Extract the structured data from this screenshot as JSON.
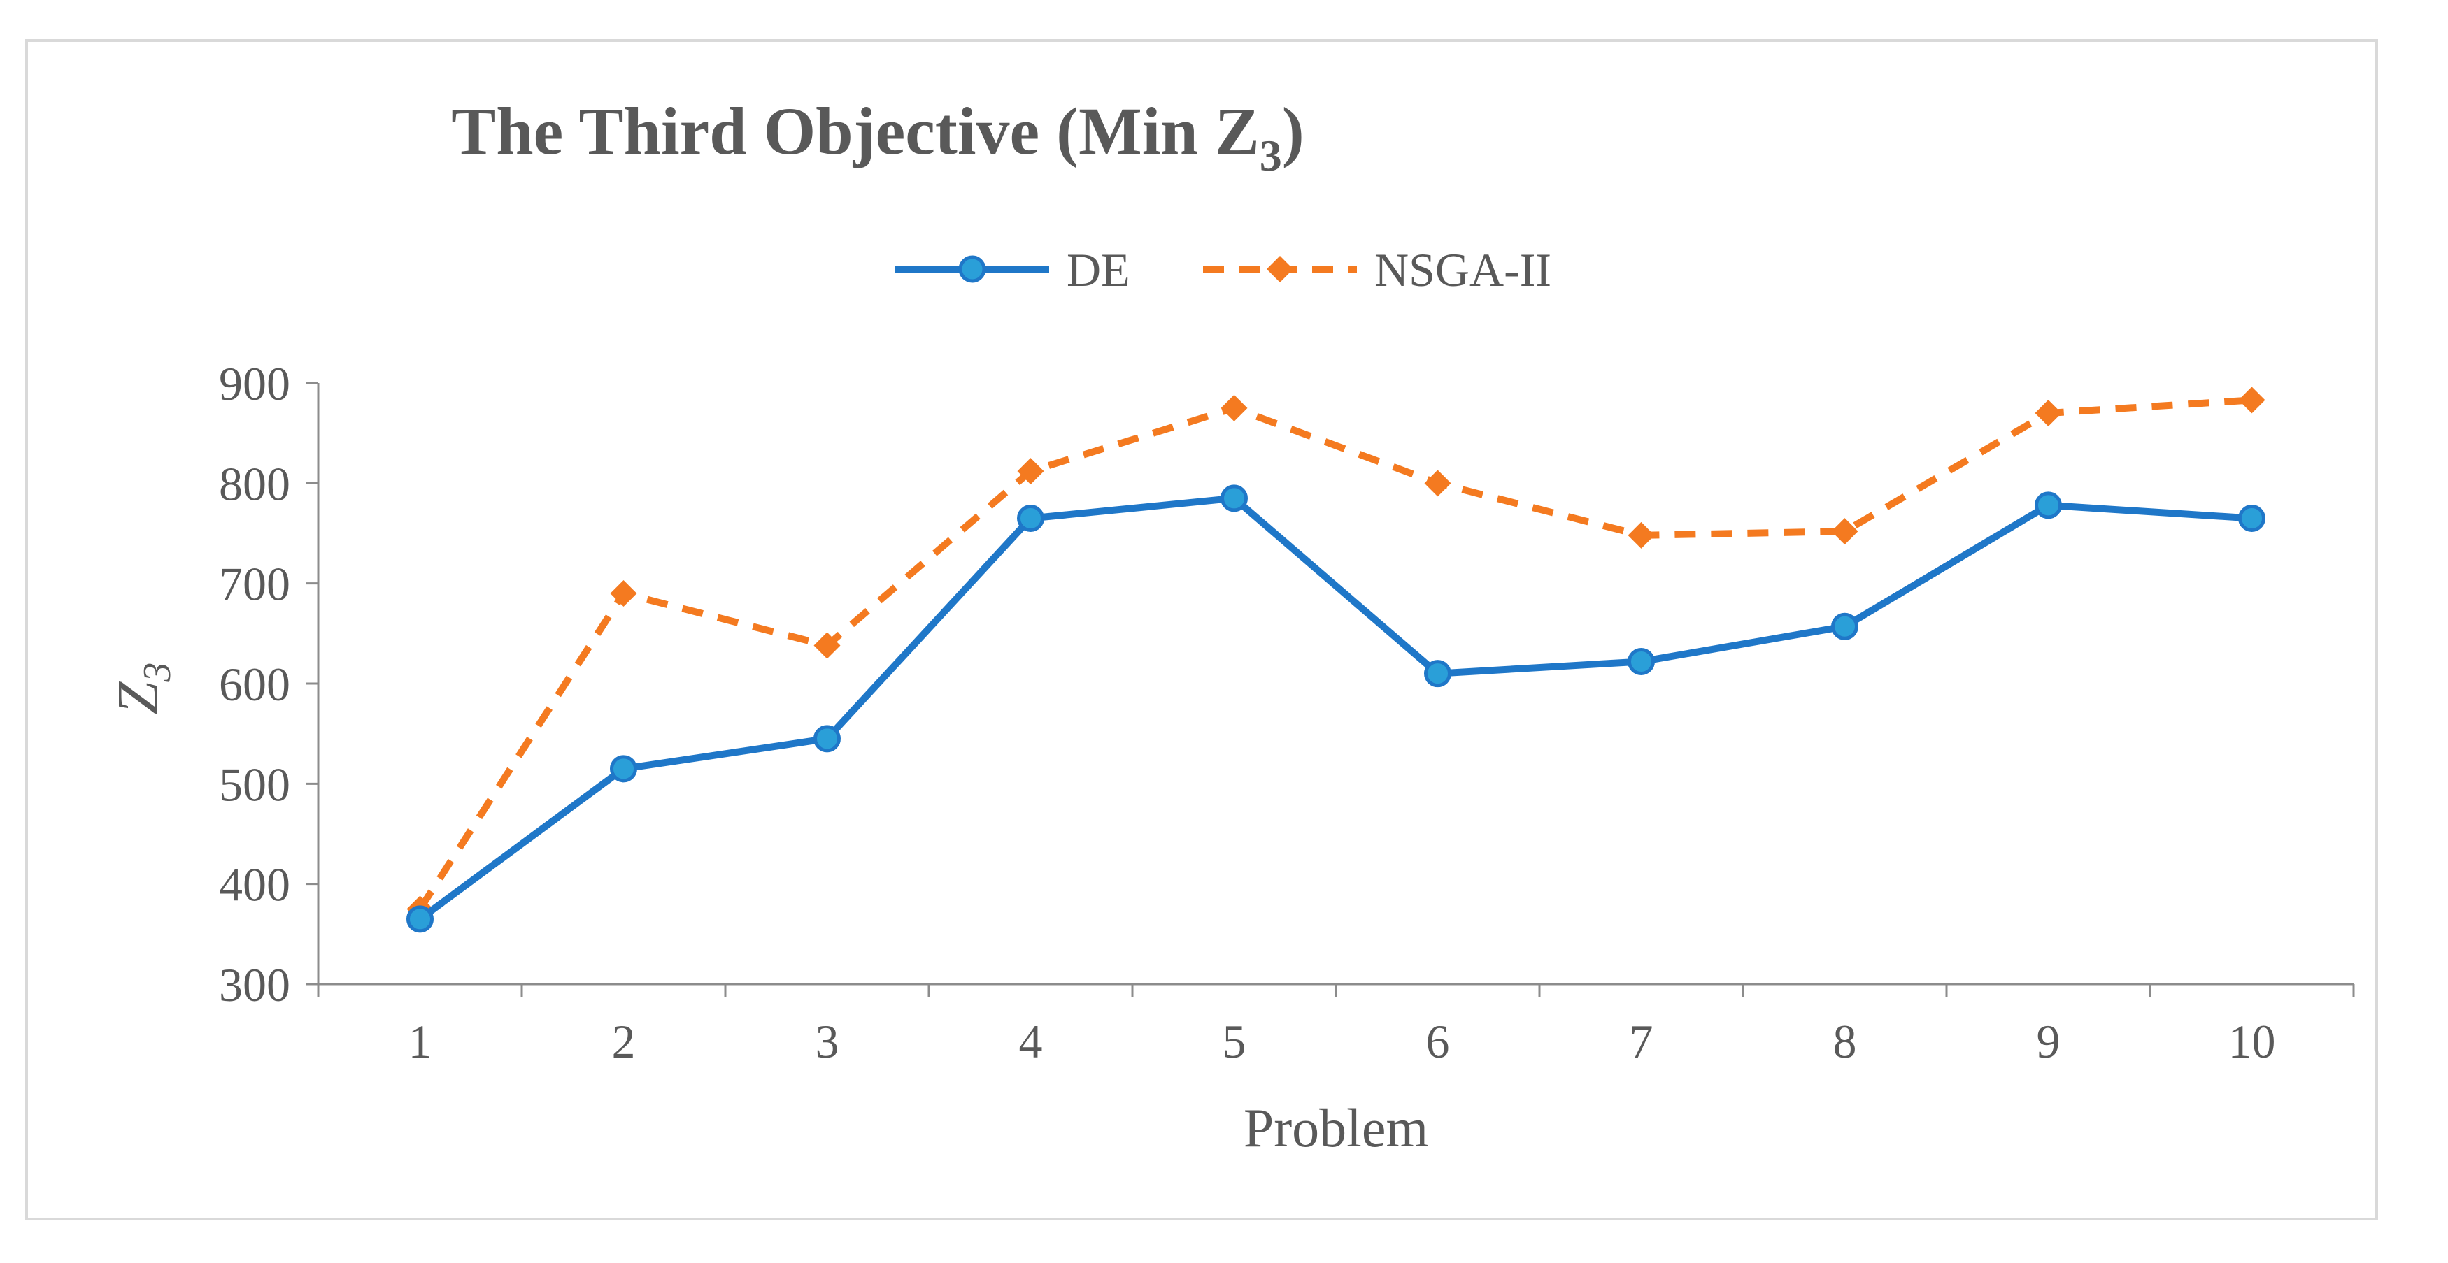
{
  "chart_data": {
    "type": "line",
    "title": "The Third Objective (Min Z",
    "title_subscript": "3",
    "title_close": ")",
    "xlabel": "Problem",
    "ylabel": "Z",
    "ylabel_subscript": "3",
    "categories": [
      "1",
      "2",
      "3",
      "4",
      "5",
      "6",
      "7",
      "8",
      "9",
      "10"
    ],
    "ylim": [
      300,
      900
    ],
    "yticks": [
      300,
      400,
      500,
      600,
      700,
      800,
      900
    ],
    "grid": false,
    "legend_position": "top-center",
    "series": [
      {
        "name": "DE",
        "color": "#1f77c8",
        "marker": "circle",
        "line_style": "solid",
        "values": [
          365,
          515,
          545,
          765,
          785,
          610,
          622,
          657,
          778,
          765
        ]
      },
      {
        "name": "NSGA-II",
        "color": "#f47a20",
        "marker": "diamond",
        "line_style": "dashed",
        "values": [
          375,
          690,
          638,
          812,
          875,
          800,
          748,
          752,
          870,
          883
        ]
      }
    ]
  }
}
